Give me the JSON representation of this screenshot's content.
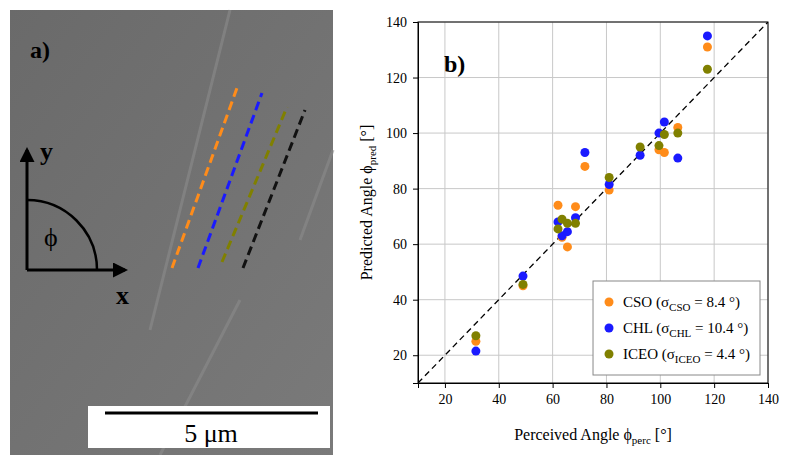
{
  "image_panel": {
    "label": "a)",
    "axis_x": "x",
    "axis_y": "y",
    "angle": "ϕ",
    "scale_bar": "5 μm"
  },
  "chart_data": {
    "type": "scatter",
    "title": "b)",
    "x_label": [
      "Perceived Angle ϕ",
      "perc",
      " [°]"
    ],
    "y_label": [
      "Predicted Angle ϕ",
      "pred",
      " [°]"
    ],
    "xlim": [
      10,
      140
    ],
    "ylim": [
      10,
      140
    ],
    "xticks": [
      20,
      40,
      60,
      80,
      100,
      120,
      140
    ],
    "yticks": [
      20,
      40,
      60,
      80,
      100,
      120,
      140
    ],
    "grid": true,
    "legend": "bottom-right",
    "marker": "circle",
    "reference_line": {
      "x": [
        10,
        140
      ],
      "values": [
        10,
        140
      ],
      "line_style": "dashed",
      "color": "#000000"
    },
    "series": [
      {
        "name": "CSO",
        "color": "#ff8c1a",
        "sigma": 8.4,
        "legend_parts": [
          " (σ",
          "CSO",
          " = ",
          " °)"
        ],
        "x": [
          31.5,
          49,
          62,
          63.5,
          65.5,
          68.5,
          72,
          81,
          99.5,
          101.5,
          106.5,
          117.5
        ],
        "values": [
          25,
          45,
          74,
          62.5,
          59,
          73.5,
          88,
          79.5,
          94,
          93,
          102,
          131
        ]
      },
      {
        "name": "CHL",
        "color": "#1a1aff",
        "sigma": 10.4,
        "legend_parts": [
          " (σ",
          "CHL",
          " = ",
          " °)"
        ],
        "x": [
          31.5,
          49,
          62,
          63.5,
          65.5,
          68.5,
          72,
          81,
          92.5,
          99.5,
          101.5,
          106.5,
          117.5
        ],
        "values": [
          21.5,
          48.5,
          68,
          63,
          64.5,
          69.5,
          93,
          81.5,
          92,
          100,
          104,
          91,
          135
        ]
      },
      {
        "name": "ICEO",
        "color": "#808000",
        "sigma": 4.4,
        "legend_parts": [
          " (σ",
          "ICEO",
          " = ",
          " °)"
        ],
        "x": [
          31.5,
          49,
          62,
          63.5,
          65.5,
          68.5,
          81,
          92.5,
          99.5,
          101.5,
          106.5,
          117.5
        ],
        "values": [
          27,
          45.5,
          65.5,
          69,
          67.5,
          67.5,
          84,
          95,
          95.5,
          99.5,
          100,
          123
        ]
      }
    ]
  }
}
